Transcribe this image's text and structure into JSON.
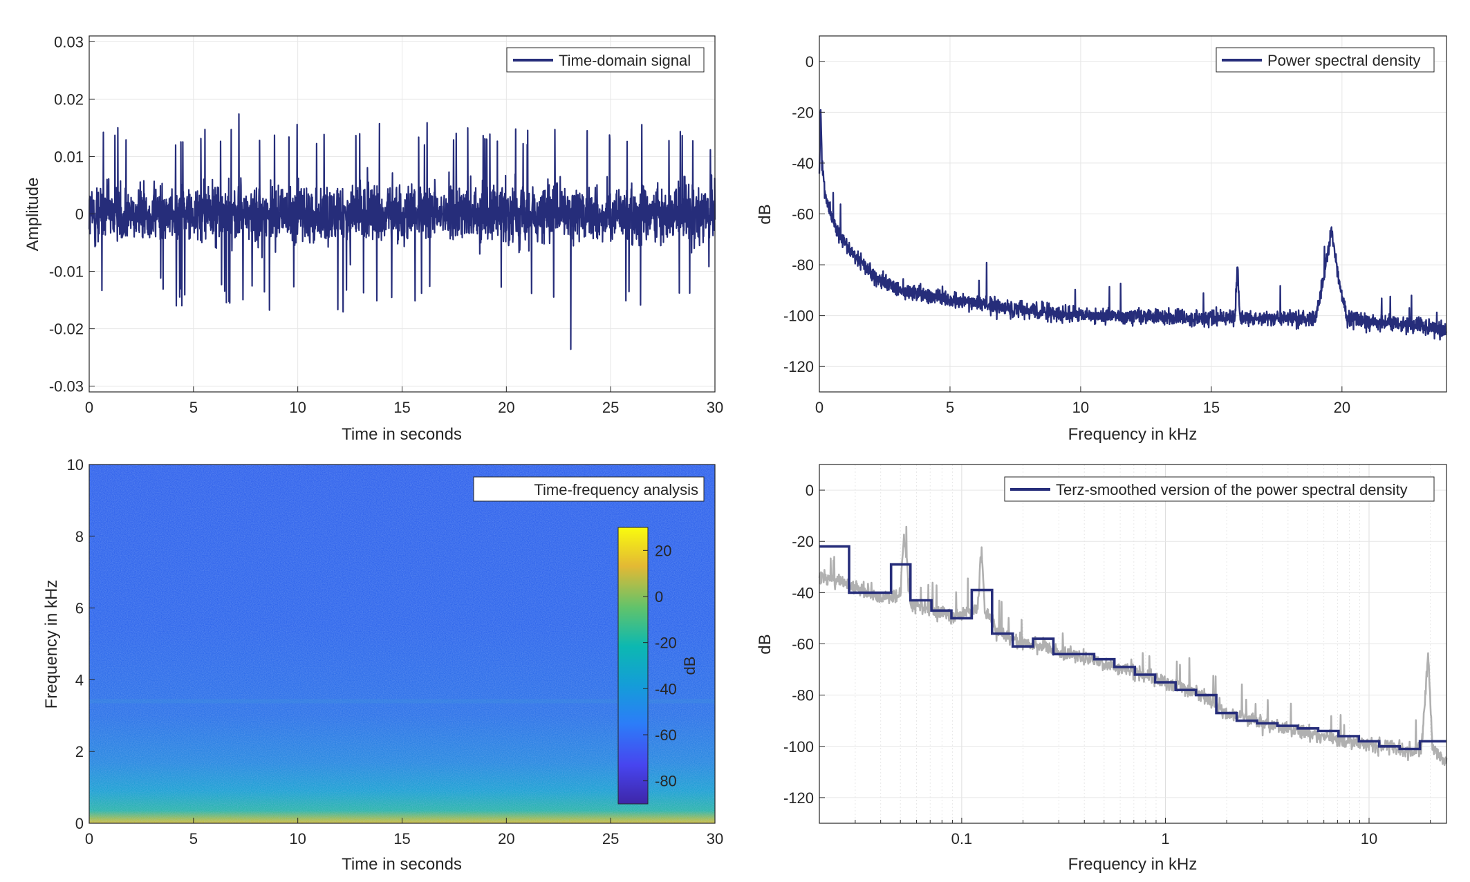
{
  "figure": {
    "colors": {
      "line": "#262d7a",
      "grey": "#b0b0b0",
      "grid": "#e6e6e6",
      "axis": "#262626",
      "background": "#ffffff"
    }
  },
  "chart_data": [
    {
      "type": "line",
      "legend": [
        "Time-domain signal"
      ],
      "legend_position": "top-right",
      "xlabel": "Time in seconds",
      "ylabel": "Amplitude",
      "xlim": [
        0,
        30
      ],
      "ylim": [
        -0.031,
        0.031
      ],
      "xticks": [
        "0",
        "5",
        "10",
        "15",
        "20",
        "25",
        "30"
      ],
      "yticks": [
        "-0.03",
        "-0.02",
        "-0.01",
        "0",
        "0.01",
        "0.02",
        "0.03"
      ],
      "grid": true,
      "series": [
        {
          "name": "Time-domain signal",
          "envelope_x": [
            0,
            1,
            2,
            3,
            4,
            5,
            6,
            7,
            8,
            9,
            10,
            11,
            12,
            13,
            14,
            15,
            16,
            17,
            18,
            19,
            20,
            21,
            22,
            23,
            24,
            25,
            26,
            27,
            28,
            29,
            30
          ],
          "envelope_max": [
            0.016,
            0.015,
            0.016,
            0.013,
            0.015,
            0.017,
            0.016,
            0.018,
            0.015,
            0.016,
            0.016,
            0.015,
            0.016,
            0.016,
            0.017,
            0.015,
            0.016,
            0.016,
            0.015,
            0.016,
            0.015,
            0.016,
            0.015,
            0.02,
            0.016,
            0.015,
            0.016,
            0.016,
            0.015,
            0.014,
            0.012
          ],
          "envelope_min": [
            -0.015,
            -0.019,
            -0.016,
            -0.014,
            -0.016,
            -0.018,
            -0.016,
            -0.016,
            -0.015,
            -0.018,
            -0.016,
            -0.016,
            -0.018,
            -0.017,
            -0.016,
            -0.015,
            -0.016,
            -0.015,
            -0.016,
            -0.015,
            -0.017,
            -0.016,
            -0.017,
            -0.025,
            -0.016,
            -0.016,
            -0.017,
            -0.016,
            -0.015,
            -0.016,
            -0.01
          ]
        }
      ]
    },
    {
      "type": "line",
      "legend": [
        "Power spectral density"
      ],
      "legend_position": "top-right",
      "xlabel": "Frequency in kHz",
      "ylabel": "dB",
      "xlim": [
        0,
        24
      ],
      "ylim": [
        -130,
        10
      ],
      "xticks": [
        "0",
        "5",
        "10",
        "15",
        "20"
      ],
      "yticks": [
        "-120",
        "-100",
        "-80",
        "-60",
        "-40",
        "-20",
        "0"
      ],
      "grid": true,
      "series": [
        {
          "name": "Power spectral density",
          "x": [
            0,
            0.05,
            0.1,
            0.2,
            0.3,
            0.5,
            0.75,
            1,
            1.5,
            2,
            2.5,
            3,
            4,
            5,
            6,
            7,
            8,
            9,
            10,
            12,
            14,
            15.9,
            16,
            16.1,
            17,
            18,
            19,
            19.3,
            19.6,
            19.9,
            20.2,
            21,
            22,
            23,
            24
          ],
          "y": [
            -45,
            -18,
            -40,
            -50,
            -55,
            -62,
            -68,
            -72,
            -78,
            -84,
            -87,
            -90,
            -92,
            -94,
            -95,
            -97,
            -98,
            -99,
            -100,
            -100,
            -101,
            -101,
            -80,
            -101,
            -101,
            -101,
            -101,
            -85,
            -66,
            -88,
            -101,
            -102,
            -103,
            -104,
            -106
          ]
        }
      ]
    },
    {
      "type": "heatmap",
      "legend": [
        "Time-frequency analysis"
      ],
      "legend_position": "top-right",
      "xlabel": "Time in seconds",
      "ylabel": "Frequency in kHz",
      "xlim": [
        0,
        30
      ],
      "ylim": [
        0,
        10
      ],
      "xticks": [
        "0",
        "5",
        "10",
        "15",
        "20",
        "25",
        "30"
      ],
      "yticks": [
        "0",
        "2",
        "4",
        "6",
        "8",
        "10"
      ],
      "colorbar": {
        "label": "dB",
        "limits": [
          -90,
          30
        ],
        "ticks": [
          "-80",
          "-60",
          "-40",
          "-20",
          "0",
          "20"
        ],
        "colormap": "parula"
      },
      "level_profile": {
        "frequency_khz": [
          0,
          0.1,
          0.3,
          0.6,
          1,
          1.5,
          2,
          3,
          3.4,
          3.5,
          4,
          6,
          8,
          10
        ],
        "level_db": [
          -5,
          -25,
          -42,
          -50,
          -55,
          -58,
          -61,
          -64,
          -60,
          -64,
          -65,
          -66,
          -66,
          -67
        ]
      }
    },
    {
      "type": "line",
      "legend": [
        "Terz-smoothed version of the power spectral density"
      ],
      "legend_position": "top-right",
      "xlabel": "Frequency in kHz",
      "ylabel": "dB",
      "xscale": "log",
      "xlim": [
        0.02,
        24
      ],
      "ylim": [
        -130,
        10
      ],
      "xticks": [
        "0.1",
        "1",
        "10"
      ],
      "yticks": [
        "-120",
        "-100",
        "-80",
        "-60",
        "-40",
        "-20",
        "0"
      ],
      "grid": true,
      "series": [
        {
          "name": "Terz-smoothed version of the power spectral density",
          "style": "step",
          "edges": [
            0.02,
            0.028,
            0.045,
            0.056,
            0.071,
            0.089,
            0.112,
            0.141,
            0.178,
            0.224,
            0.282,
            0.355,
            0.447,
            0.562,
            0.708,
            0.891,
            1.122,
            1.413,
            1.778,
            2.239,
            2.818,
            3.548,
            4.467,
            5.623,
            7.079,
            8.913,
            11.22,
            14.13,
            17.78,
            24
          ],
          "values": [
            -22,
            -40,
            -29,
            -43,
            -47,
            -50,
            -39,
            -56,
            -61,
            -58,
            -64,
            -64,
            -66,
            -69,
            -72,
            -75,
            -78,
            -80,
            -87,
            -90,
            -91,
            -92,
            -93,
            -94,
            -96,
            -98,
            -100,
            -101,
            -98
          ]
        },
        {
          "name": "Power spectral density",
          "style": "raw",
          "x": [
            0.02,
            0.03,
            0.04,
            0.05,
            0.052,
            0.056,
            0.07,
            0.09,
            0.12,
            0.125,
            0.13,
            0.15,
            0.2,
            0.3,
            0.5,
            0.7,
            1,
            1.5,
            2,
            3,
            5,
            8,
            10,
            15,
            18,
            19.5,
            20.5,
            24
          ],
          "y": [
            -34,
            -38,
            -42,
            -41,
            -17,
            -44,
            -46,
            -50,
            -46,
            -23,
            -47,
            -55,
            -60,
            -63,
            -68,
            -71,
            -75,
            -80,
            -87,
            -91,
            -95,
            -98,
            -99,
            -102,
            -102,
            -64,
            -102,
            -106
          ]
        }
      ]
    }
  ]
}
